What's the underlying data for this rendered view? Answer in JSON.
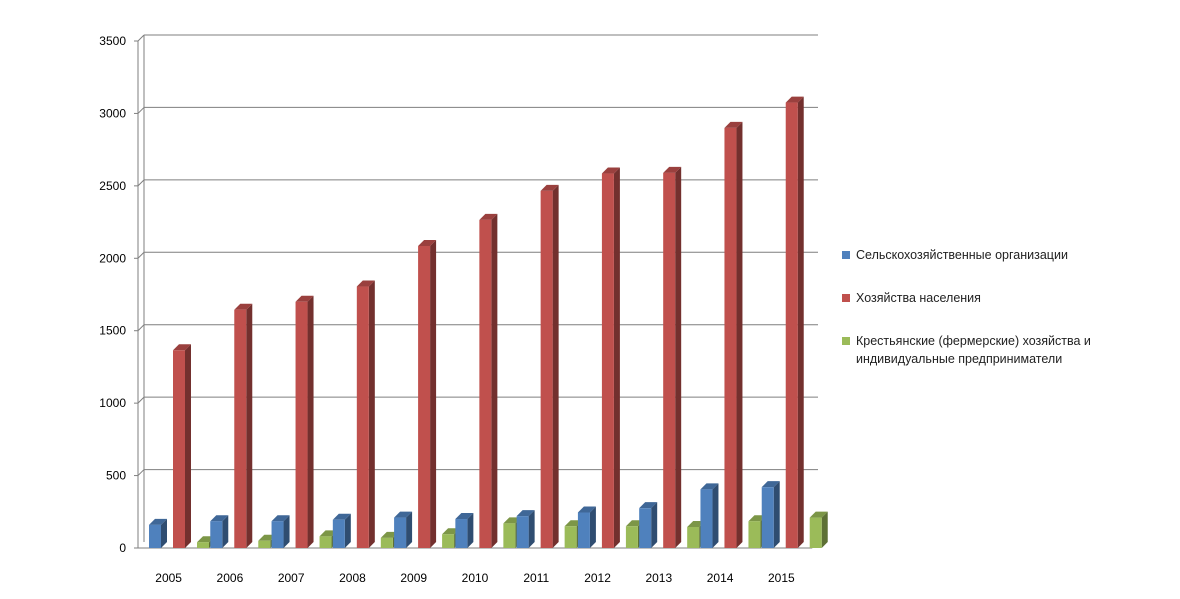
{
  "chart_data": {
    "type": "bar",
    "title": "",
    "xlabel": "",
    "ylabel": "",
    "ylim": [
      0,
      3500
    ],
    "yticks": [
      0,
      500,
      1000,
      1500,
      2000,
      2500,
      3000,
      3500
    ],
    "ytick_labels": [
      "0",
      "500",
      "1000",
      "1500",
      "2000",
      "2500",
      "3000",
      "3500"
    ],
    "categories": [
      "2005",
      "2006",
      "2007",
      "2008",
      "2009",
      "2010",
      "2011",
      "2012",
      "2013",
      "2014",
      "2015"
    ],
    "grid": true,
    "legend_position": "right",
    "series": [
      {
        "name": "Сельскохозяйственные организации",
        "color": "#4f81bd",
        "values": [
          160,
          185,
          185,
          195,
          210,
          200,
          220,
          245,
          275,
          405,
          420
        ]
      },
      {
        "name": "Хозяйства населения",
        "color": "#c0504d",
        "values": [
          1365,
          1645,
          1700,
          1805,
          2085,
          2265,
          2465,
          2585,
          2590,
          2900,
          3075
        ]
      },
      {
        "name": "Крестьянские (фермерские) хозяйства и индивидуальные предприниматели",
        "color": "#9bbb59",
        "values": [
          40,
          50,
          80,
          70,
          95,
          170,
          150,
          150,
          145,
          185,
          210
        ]
      }
    ]
  }
}
